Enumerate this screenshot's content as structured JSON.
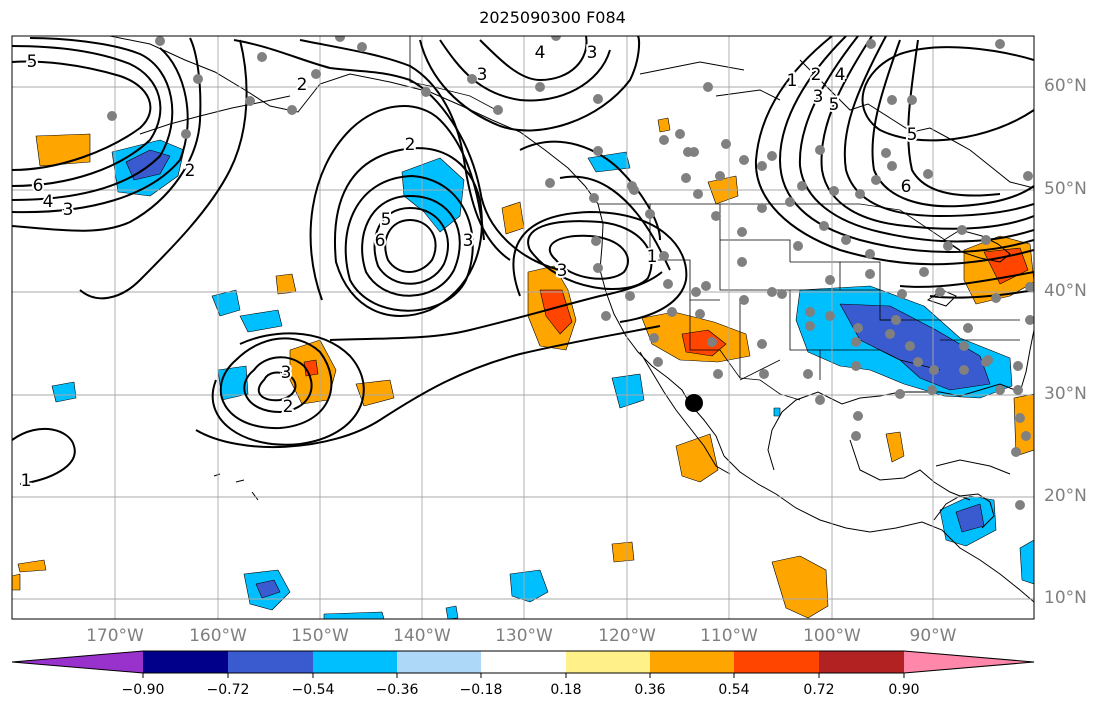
{
  "title": "2025090300 F084",
  "colors": {
    "neg_extreme": "#9932cc",
    "neg_090": "#00008b",
    "neg_072": "#3a5bd0",
    "neg_054": "#00bfff",
    "neg_036": "#add8f8",
    "neutral": "#ffffff",
    "pos_018": "#fff08a",
    "pos_036": "#ffa500",
    "pos_054": "#ff4500",
    "pos_072": "#b22222",
    "pos_extreme": "#ff88aa",
    "contour": "#000000",
    "station": "#808080",
    "marker": "#000000",
    "grid": "#a9a9a9",
    "coast": "#000000"
  },
  "longitude_labels": [
    "170°W",
    "160°W",
    "150°W",
    "140°W",
    "130°W",
    "120°W",
    "110°W",
    "100°W",
    "90°W"
  ],
  "latitude_labels": [
    "60°N",
    "50°N",
    "40°N",
    "30°N",
    "20°N",
    "10°N"
  ],
  "colorbar": {
    "ticks": [
      "−0.90",
      "−0.72",
      "−0.54",
      "−0.36",
      "−0.18",
      "0.18",
      "0.36",
      "0.54",
      "0.72",
      "0.90"
    ]
  },
  "contour_labels": [
    {
      "id": "5a",
      "text": "5"
    },
    {
      "id": "6a",
      "text": "6"
    },
    {
      "id": "4a",
      "text": "4"
    },
    {
      "id": "3a",
      "text": "3"
    },
    {
      "id": "2a",
      "text": "2"
    },
    {
      "id": "2b",
      "text": "2"
    },
    {
      "id": "6b",
      "text": "6"
    },
    {
      "id": "5b",
      "text": "5"
    },
    {
      "id": "2c",
      "text": "2"
    },
    {
      "id": "3b",
      "text": "3"
    },
    {
      "id": "3c",
      "text": "3"
    },
    {
      "id": "2d",
      "text": "2"
    },
    {
      "id": "3d",
      "text": "3"
    },
    {
      "id": "3e",
      "text": "3"
    },
    {
      "id": "1a",
      "text": "1"
    },
    {
      "id": "1b",
      "text": "1"
    },
    {
      "id": "4b",
      "text": "4"
    },
    {
      "id": "3f",
      "text": "3"
    },
    {
      "id": "1c",
      "text": "1"
    },
    {
      "id": "2e",
      "text": "2"
    },
    {
      "id": "3g",
      "text": "3"
    },
    {
      "id": "4c",
      "text": "4"
    },
    {
      "id": "5c",
      "text": "5"
    },
    {
      "id": "5d",
      "text": "5"
    },
    {
      "id": "6c",
      "text": "6"
    }
  ]
}
